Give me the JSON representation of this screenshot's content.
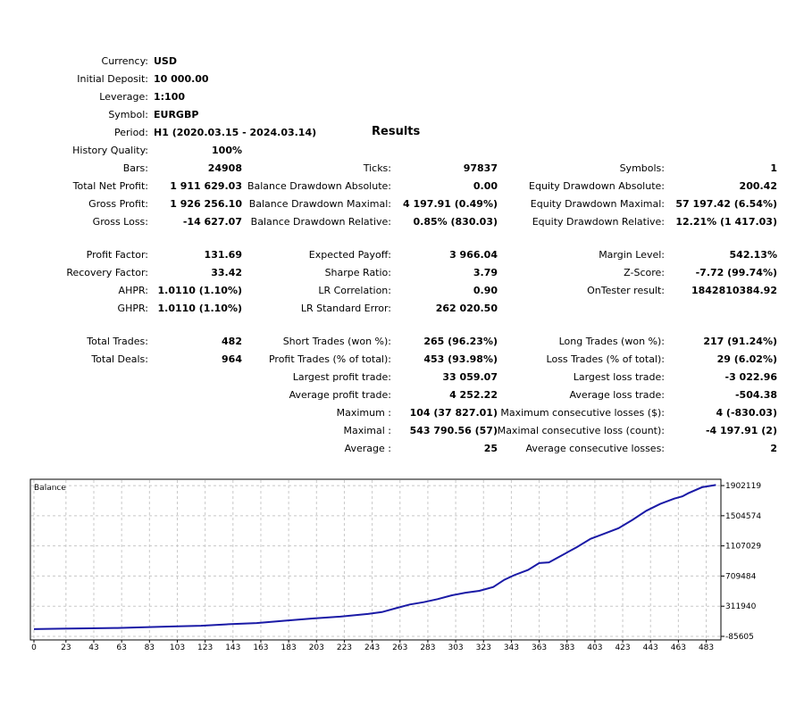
{
  "header": {
    "currency_label": "Currency:",
    "currency": "USD",
    "deposit_label": "Initial Deposit:",
    "deposit": "10 000.00",
    "leverage_label": "Leverage:",
    "leverage": "1:100",
    "symbol_label": "Symbol:",
    "symbol": "EURGBP",
    "period_label": "Period:",
    "period": "H1 (2020.03.15 - 2024.03.14)",
    "results_title": "Results"
  },
  "quality": {
    "label": "History Quality:",
    "value": "100%"
  },
  "col1": [
    {
      "label": "Bars:",
      "value": "24908"
    },
    {
      "label": "Total Net Profit:",
      "value": "1 911 629.03"
    },
    {
      "label": "Gross Profit:",
      "value": "1 926 256.10"
    },
    {
      "label": "Gross Loss:",
      "value": "-14 627.07"
    },
    {
      "label": "Profit Factor:",
      "value": "131.69"
    },
    {
      "label": "Recovery Factor:",
      "value": "33.42"
    },
    {
      "label": "AHPR:",
      "value": "1.0110 (1.10%)"
    },
    {
      "label": "GHPR:",
      "value": "1.0110 (1.10%)"
    },
    {
      "label": "Total Trades:",
      "value": "482"
    },
    {
      "label": "Total Deals:",
      "value": "964"
    }
  ],
  "col2": [
    {
      "label": "Ticks:",
      "value": "97837"
    },
    {
      "label": "Balance Drawdown Absolute:",
      "value": "0.00"
    },
    {
      "label": "Balance Drawdown Maximal:",
      "value": "4 197.91 (0.49%)"
    },
    {
      "label": "Balance Drawdown Relative:",
      "value": "0.85% (830.03)"
    },
    {
      "label": "Expected Payoff:",
      "value": "3 966.04"
    },
    {
      "label": "Sharpe Ratio:",
      "value": "3.79"
    },
    {
      "label": "LR Correlation:",
      "value": "0.90"
    },
    {
      "label": "LR Standard Error:",
      "value": "262 020.50"
    },
    {
      "label": "Short Trades (won %):",
      "value": "265 (96.23%)"
    },
    {
      "label": "Profit Trades (% of total):",
      "value": "453 (93.98%)"
    },
    {
      "label": "Largest profit trade:",
      "value": "33 059.07"
    },
    {
      "label": "Average profit trade:",
      "value": "4 252.22"
    },
    {
      "label": "Maximum :",
      "value": "104 (37 827.01)"
    },
    {
      "label": "Maximal :",
      "value": "543 790.56 (57)"
    },
    {
      "label": "Average :",
      "value": "25"
    }
  ],
  "col3": [
    {
      "label": "Symbols:",
      "value": "1"
    },
    {
      "label": "Equity Drawdown Absolute:",
      "value": "200.42"
    },
    {
      "label": "Equity Drawdown Maximal:",
      "value": "57 197.42 (6.54%)"
    },
    {
      "label": "Equity Drawdown Relative:",
      "value": "12.21% (1 417.03)"
    },
    {
      "label": "Margin Level:",
      "value": "542.13%"
    },
    {
      "label": "Z-Score:",
      "value": "-7.72 (99.74%)"
    },
    {
      "label": "OnTester result:",
      "value": "1842810384.92"
    },
    {
      "label": "Long Trades (won %):",
      "value": "217 (91.24%)"
    },
    {
      "label": "Loss Trades (% of total):",
      "value": "29 (6.02%)"
    },
    {
      "label": "Largest loss trade:",
      "value": "-3 022.96"
    },
    {
      "label": "Average loss trade:",
      "value": "-504.38"
    },
    {
      "label": "Maximum consecutive losses ($):",
      "value": "4 (-830.03)"
    },
    {
      "label": "Maximal consecutive loss (count):",
      "value": "-4 197.91 (2)"
    },
    {
      "label": "Average consecutive losses:",
      "value": "2"
    }
  ],
  "colors": {
    "line": "#1a1aa6",
    "grid": "#c8c8c8",
    "frame": "#000000"
  },
  "chart_data": {
    "type": "line",
    "title": "Balance",
    "xlabel": "",
    "ylabel": "",
    "xlim": [
      0,
      491
    ],
    "ylim": [
      -85605,
      1950000
    ],
    "x_ticks": [
      0,
      23,
      43,
      63,
      83,
      103,
      123,
      143,
      163,
      183,
      203,
      223,
      243,
      263,
      283,
      303,
      323,
      343,
      363,
      383,
      403,
      423,
      443,
      463,
      483
    ],
    "y_ticks": [
      -85605,
      311940,
      709484,
      1107029,
      1504574,
      1902119
    ],
    "series": [
      {
        "x": [
          0,
          20,
          40,
          60,
          80,
          100,
          120,
          140,
          160,
          180,
          200,
          220,
          240,
          250,
          260,
          270,
          280,
          290,
          300,
          310,
          320,
          330,
          338,
          345,
          355,
          363,
          370,
          380,
          390,
          400,
          410,
          420,
          430,
          440,
          450,
          460,
          466,
          470,
          480,
          490
        ],
        "y": [
          10000,
          15000,
          20000,
          25000,
          35000,
          45000,
          55000,
          75000,
          90000,
          120000,
          150000,
          175000,
          210000,
          235000,
          285000,
          335000,
          365000,
          405000,
          455000,
          490000,
          515000,
          565000,
          660000,
          720000,
          790000,
          880000,
          890000,
          990000,
          1090000,
          1200000,
          1270000,
          1340000,
          1450000,
          1570000,
          1660000,
          1730000,
          1760000,
          1800000,
          1880000,
          1910000
        ]
      }
    ]
  }
}
